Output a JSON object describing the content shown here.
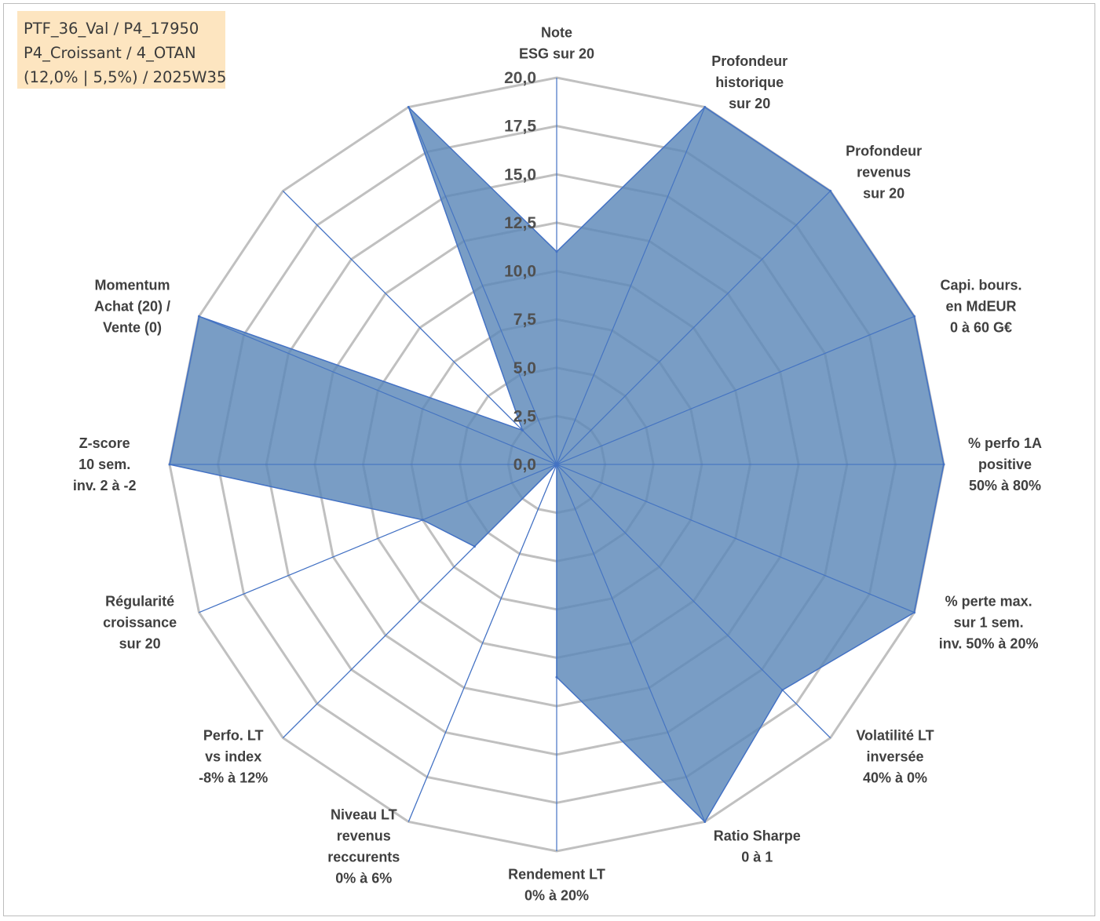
{
  "info_box": {
    "line1": "PTF_36_Val / P4_17950",
    "line2": "P4_Croissant / 4_OTAN",
    "line3": "(12,0% | 5,5%) / 2025W35"
  },
  "colors": {
    "fill": "#5b88b8",
    "stroke": "#4472c4",
    "grid": "#c0c0c0",
    "info_bg": "#fde5c0"
  },
  "chart_data": {
    "type": "radar",
    "rmax": 20,
    "tick_labels": [
      "0,0",
      "2,5",
      "5,0",
      "7,5",
      "10,0",
      "12,5",
      "15,0",
      "17,5",
      "20,0"
    ],
    "tick_values": [
      0,
      2.5,
      5,
      7.5,
      10,
      12.5,
      15,
      17.5,
      20
    ],
    "grid_levels": [
      2.5,
      5,
      7.5,
      10,
      12.5,
      15,
      17.5,
      20
    ],
    "axes": [
      {
        "label": [
          "Note",
          "ESG sur 20"
        ],
        "value": 11
      },
      {
        "label": [
          "Profondeur",
          "historique",
          "sur 20"
        ],
        "value": 20
      },
      {
        "label": [
          "Profondeur",
          "revenus",
          "sur 20"
        ],
        "value": 20
      },
      {
        "label": [
          "Capi. bours.",
          "en MdEUR",
          "0 à 60 G€"
        ],
        "value": 20
      },
      {
        "label": [
          "% perfo 1A",
          "positive",
          "50% à 80%"
        ],
        "value": 20
      },
      {
        "label": [
          "% perte max.",
          "sur 1 sem.",
          "inv. 50% à 20%"
        ],
        "value": 20
      },
      {
        "label": [
          "Volatilité LT",
          "inversée",
          "40% à 0%"
        ],
        "value": 16.5
      },
      {
        "label": [
          "Ratio Sharpe",
          "0 à 1"
        ],
        "value": 20
      },
      {
        "label": [
          "Rendement LT",
          "0% à 20%"
        ],
        "value": 11
      },
      {
        "label": [
          "Niveau LT",
          "revenus",
          "reccurents",
          "0% à 6%"
        ],
        "value": 0
      },
      {
        "label": [
          "Perfo. LT",
          "vs index",
          "-8% à 12%"
        ],
        "value": 6
      },
      {
        "label": [
          "Régularité",
          "croissance",
          "sur 20"
        ],
        "value": 7.5
      },
      {
        "label": [
          "Z-score",
          "10 sem.",
          "inv. 2 à -2"
        ],
        "value": 20
      },
      {
        "label": [
          "Momentum",
          "Achat (20) /",
          "Vente (0)"
        ],
        "value": 20
      },
      {
        "label": [
          ""
        ],
        "value": 2.5
      },
      {
        "label": [
          ""
        ],
        "value": 20
      }
    ]
  }
}
